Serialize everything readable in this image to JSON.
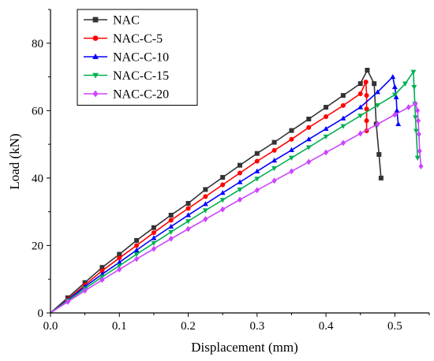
{
  "chart_data": {
    "type": "line",
    "title": "",
    "xlabel": "Displacement (mm)",
    "ylabel": "Load (kN)",
    "xlim": [
      0,
      0.55
    ],
    "ylim": [
      0,
      90
    ],
    "xticks": [
      0.0,
      0.1,
      0.2,
      0.3,
      0.4,
      0.5
    ],
    "xtick_labels": [
      "0.0",
      "0.1",
      "0.2",
      "0.3",
      "0.4",
      "0.5"
    ],
    "yticks": [
      0,
      20,
      40,
      60,
      80
    ],
    "ytick_labels": [
      "0",
      "20",
      "40",
      "60",
      "80"
    ],
    "grid": false,
    "legend_position": "top-left",
    "series": [
      {
        "name": "NAC",
        "color": "#333333",
        "marker": "square",
        "points": [
          [
            0,
            0
          ],
          [
            0.025,
            4.5
          ],
          [
            0.05,
            9.0
          ],
          [
            0.075,
            13.5
          ],
          [
            0.1,
            17.4
          ],
          [
            0.125,
            21.5
          ],
          [
            0.15,
            25.3
          ],
          [
            0.175,
            29.0
          ],
          [
            0.2,
            32.5
          ],
          [
            0.225,
            36.6
          ],
          [
            0.25,
            40.2
          ],
          [
            0.275,
            43.8
          ],
          [
            0.3,
            47.3
          ],
          [
            0.325,
            50.6
          ],
          [
            0.35,
            54.1
          ],
          [
            0.375,
            57.5
          ],
          [
            0.4,
            61.0
          ],
          [
            0.425,
            64.5
          ],
          [
            0.45,
            68.0
          ],
          [
            0.46,
            72.0
          ],
          [
            0.47,
            68.0
          ],
          [
            0.473,
            56.0
          ],
          [
            0.477,
            47.0
          ],
          [
            0.48,
            40.0
          ]
        ]
      },
      {
        "name": "NAC-C-5",
        "color": "#ff0000",
        "marker": "circle",
        "points": [
          [
            0,
            0
          ],
          [
            0.025,
            4.0
          ],
          [
            0.05,
            8.3
          ],
          [
            0.075,
            12.5
          ],
          [
            0.1,
            16.3
          ],
          [
            0.125,
            20.0
          ],
          [
            0.15,
            23.8
          ],
          [
            0.175,
            27.5
          ],
          [
            0.2,
            31.0
          ],
          [
            0.225,
            34.5
          ],
          [
            0.25,
            38.0
          ],
          [
            0.275,
            41.5
          ],
          [
            0.3,
            45.0
          ],
          [
            0.325,
            48.2
          ],
          [
            0.35,
            51.5
          ],
          [
            0.375,
            55.0
          ],
          [
            0.4,
            58.2
          ],
          [
            0.425,
            61.5
          ],
          [
            0.45,
            65.0
          ],
          [
            0.458,
            68.5
          ],
          [
            0.459,
            64.5
          ],
          [
            0.459,
            60.5
          ],
          [
            0.459,
            57.0
          ],
          [
            0.459,
            54.0
          ]
        ]
      },
      {
        "name": "NAC-C-10",
        "color": "#0000ff",
        "marker": "triangle-up",
        "points": [
          [
            0,
            0
          ],
          [
            0.025,
            3.8
          ],
          [
            0.05,
            7.8
          ],
          [
            0.075,
            11.5
          ],
          [
            0.1,
            15.0
          ],
          [
            0.125,
            18.6
          ],
          [
            0.15,
            22.2
          ],
          [
            0.175,
            25.6
          ],
          [
            0.2,
            29.0
          ],
          [
            0.225,
            32.3
          ],
          [
            0.25,
            35.6
          ],
          [
            0.275,
            38.8
          ],
          [
            0.3,
            42.0
          ],
          [
            0.325,
            45.2
          ],
          [
            0.35,
            48.3
          ],
          [
            0.375,
            51.5
          ],
          [
            0.4,
            54.6
          ],
          [
            0.425,
            57.7
          ],
          [
            0.45,
            61.0
          ],
          [
            0.475,
            65.5
          ],
          [
            0.497,
            70.0
          ],
          [
            0.5,
            67.0
          ],
          [
            0.502,
            64.0
          ],
          [
            0.503,
            60.0
          ],
          [
            0.505,
            56.0
          ]
        ]
      },
      {
        "name": "NAC-C-15",
        "color": "#00b050",
        "marker": "triangle-down",
        "points": [
          [
            0,
            0
          ],
          [
            0.025,
            3.6
          ],
          [
            0.05,
            7.2
          ],
          [
            0.075,
            10.7
          ],
          [
            0.1,
            14.0
          ],
          [
            0.125,
            17.4
          ],
          [
            0.15,
            20.7
          ],
          [
            0.175,
            24.0
          ],
          [
            0.2,
            27.2
          ],
          [
            0.225,
            30.4
          ],
          [
            0.25,
            33.5
          ],
          [
            0.275,
            36.6
          ],
          [
            0.3,
            39.8
          ],
          [
            0.325,
            42.9
          ],
          [
            0.35,
            46.0
          ],
          [
            0.375,
            49.1
          ],
          [
            0.4,
            52.3
          ],
          [
            0.425,
            55.4
          ],
          [
            0.45,
            58.5
          ],
          [
            0.475,
            61.6
          ],
          [
            0.5,
            64.7
          ],
          [
            0.515,
            68.0
          ],
          [
            0.527,
            71.5
          ],
          [
            0.528,
            67.0
          ],
          [
            0.529,
            62.0
          ],
          [
            0.53,
            58.0
          ],
          [
            0.531,
            54.0
          ],
          [
            0.533,
            46.0
          ]
        ]
      },
      {
        "name": "NAC-C-20",
        "color": "#cc44ff",
        "marker": "diamond",
        "points": [
          [
            0,
            0
          ],
          [
            0.025,
            3.3
          ],
          [
            0.05,
            6.6
          ],
          [
            0.075,
            9.8
          ],
          [
            0.1,
            12.9
          ],
          [
            0.125,
            16.0
          ],
          [
            0.15,
            19.0
          ],
          [
            0.175,
            22.0
          ],
          [
            0.2,
            24.9
          ],
          [
            0.225,
            27.8
          ],
          [
            0.25,
            30.7
          ],
          [
            0.275,
            33.6
          ],
          [
            0.3,
            36.4
          ],
          [
            0.325,
            39.2
          ],
          [
            0.35,
            42.0
          ],
          [
            0.375,
            44.8
          ],
          [
            0.4,
            47.6
          ],
          [
            0.425,
            50.4
          ],
          [
            0.45,
            53.2
          ],
          [
            0.475,
            56.0
          ],
          [
            0.5,
            58.8
          ],
          [
            0.52,
            61.0
          ],
          [
            0.53,
            62.0
          ],
          [
            0.533,
            60.0
          ],
          [
            0.534,
            57.0
          ],
          [
            0.535,
            53.0
          ],
          [
            0.536,
            48.0
          ],
          [
            0.538,
            43.5
          ]
        ]
      }
    ]
  }
}
